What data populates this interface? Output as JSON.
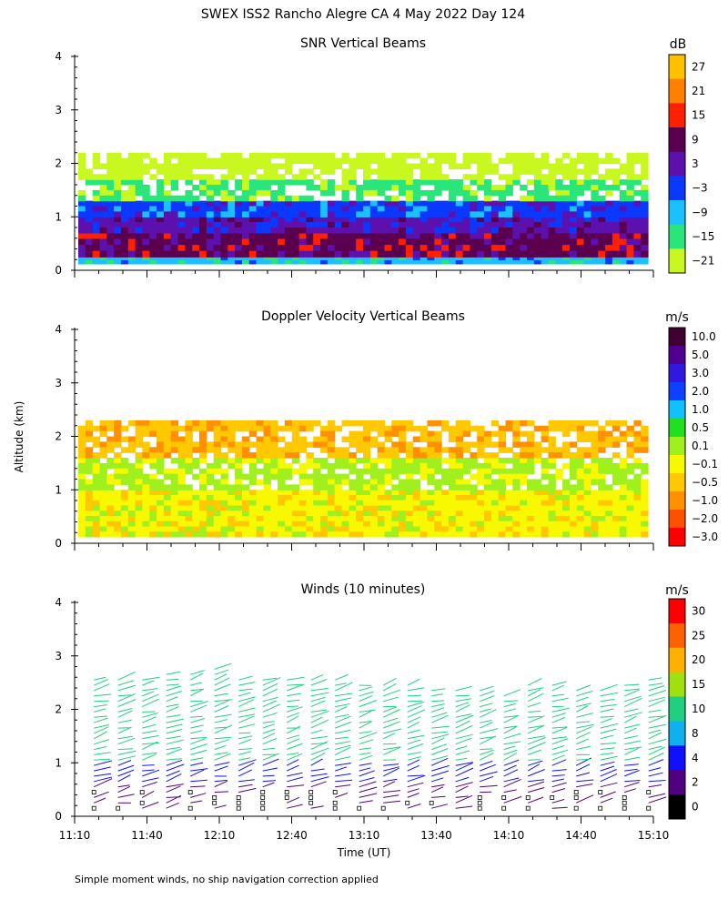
{
  "figure_title": "SWEX ISS2 Rancho Alegre CA   4 May 2022 Day 124",
  "y_axis_label": "Altitude (km)",
  "x_axis_label": "Time (UT)",
  "footnote": "Simple moment winds, no ship navigation correction applied",
  "chart_data": [
    {
      "type": "heatmap",
      "title": "SNR Vertical Beams",
      "colorbar_title": "dB",
      "colorbar_ticks": [
        "27",
        "21",
        "15",
        "9",
        "3",
        "−3",
        "−9",
        "−15",
        "−21"
      ],
      "colorbar_colors": [
        "#ffc000",
        "#ff8000",
        "#ff2000",
        "#5a004e",
        "#5c10ae",
        "#0a38ff",
        "#1ac0ff",
        "#2ae67a",
        "#c8f820"
      ],
      "yticks": [
        "0",
        "1",
        "2",
        "3",
        "4"
      ],
      "ylim": [
        0,
        4
      ],
      "xlim_minutes": [
        670,
        910
      ],
      "layers_km": [
        {
          "from": 0.12,
          "to": 0.25,
          "class": "−9"
        },
        {
          "from": 0.25,
          "to": 0.7,
          "class": "9"
        },
        {
          "from": 0.7,
          "to": 1.0,
          "class": "3"
        },
        {
          "from": 1.0,
          "to": 1.3,
          "class": "−3"
        },
        {
          "from": 1.3,
          "to": 1.7,
          "class": "−15"
        },
        {
          "from": 1.7,
          "to": 2.2,
          "class": "−21"
        }
      ]
    },
    {
      "type": "heatmap",
      "title": "Doppler Velocity Vertical Beams",
      "colorbar_title": "m/s",
      "colorbar_ticks": [
        "10.0",
        "5.0",
        "3.0",
        "2.0",
        "1.0",
        "0.5",
        "0.1",
        "−0.1",
        "−0.5",
        "−1.0",
        "−2.0",
        "−3.0"
      ],
      "colorbar_colors": [
        "#400030",
        "#500090",
        "#3018e0",
        "#1040ff",
        "#10c0ff",
        "#20e020",
        "#a0f020",
        "#f8f800",
        "#ffc800",
        "#ff9000",
        "#ff5000",
        "#ff0000"
      ],
      "yticks": [
        "0",
        "1",
        "2",
        "3",
        "4"
      ],
      "ylim": [
        0,
        4
      ],
      "xlim_minutes": [
        670,
        910
      ],
      "layers_km": [
        {
          "from": 0.12,
          "to": 1.0,
          "class": "−0.1"
        },
        {
          "from": 1.0,
          "to": 1.6,
          "class": "0.1"
        },
        {
          "from": 1.6,
          "to": 2.3,
          "class": "−0.5"
        }
      ]
    },
    {
      "type": "scatter",
      "title": "Winds (10 minutes)",
      "colorbar_title": "m/s",
      "colorbar_ticks": [
        "30",
        "25",
        "20",
        "15",
        "10",
        "8",
        "4",
        "2",
        "0"
      ],
      "colorbar_colors": [
        "#ff0000",
        "#ff6000",
        "#ffb000",
        "#a0e010",
        "#20d080",
        "#10b0f0",
        "#1010ff",
        "#500080",
        "#000000"
      ],
      "yticks": [
        "0",
        "1",
        "2",
        "3",
        "4"
      ],
      "ylim": [
        0,
        4
      ],
      "xlim_minutes": [
        670,
        910
      ],
      "xticks": [
        "11:10",
        "11:40",
        "12:10",
        "12:40",
        "13:10",
        "13:40",
        "14:10",
        "14:40",
        "15:10"
      ],
      "profile_times_minutes": [
        678,
        688,
        698,
        708,
        718,
        728,
        738,
        748,
        758,
        768,
        778,
        788,
        798,
        808,
        818,
        828,
        838,
        848,
        858,
        868,
        878,
        888,
        898,
        908
      ],
      "top_km_per_profile": [
        2.6,
        2.6,
        2.6,
        2.7,
        2.7,
        2.8,
        2.6,
        2.6,
        2.6,
        2.6,
        2.6,
        2.5,
        2.5,
        2.5,
        2.4,
        2.4,
        2.4,
        2.3,
        2.5,
        2.5,
        2.4,
        2.4,
        2.5,
        2.6
      ],
      "wind_speed_class_by_height_km": [
        {
          "from": 0.0,
          "to": 0.6,
          "class": "2"
        },
        {
          "from": 0.6,
          "to": 1.0,
          "class": "4"
        },
        {
          "from": 1.0,
          "to": 2.8,
          "class": "10"
        }
      ]
    }
  ]
}
